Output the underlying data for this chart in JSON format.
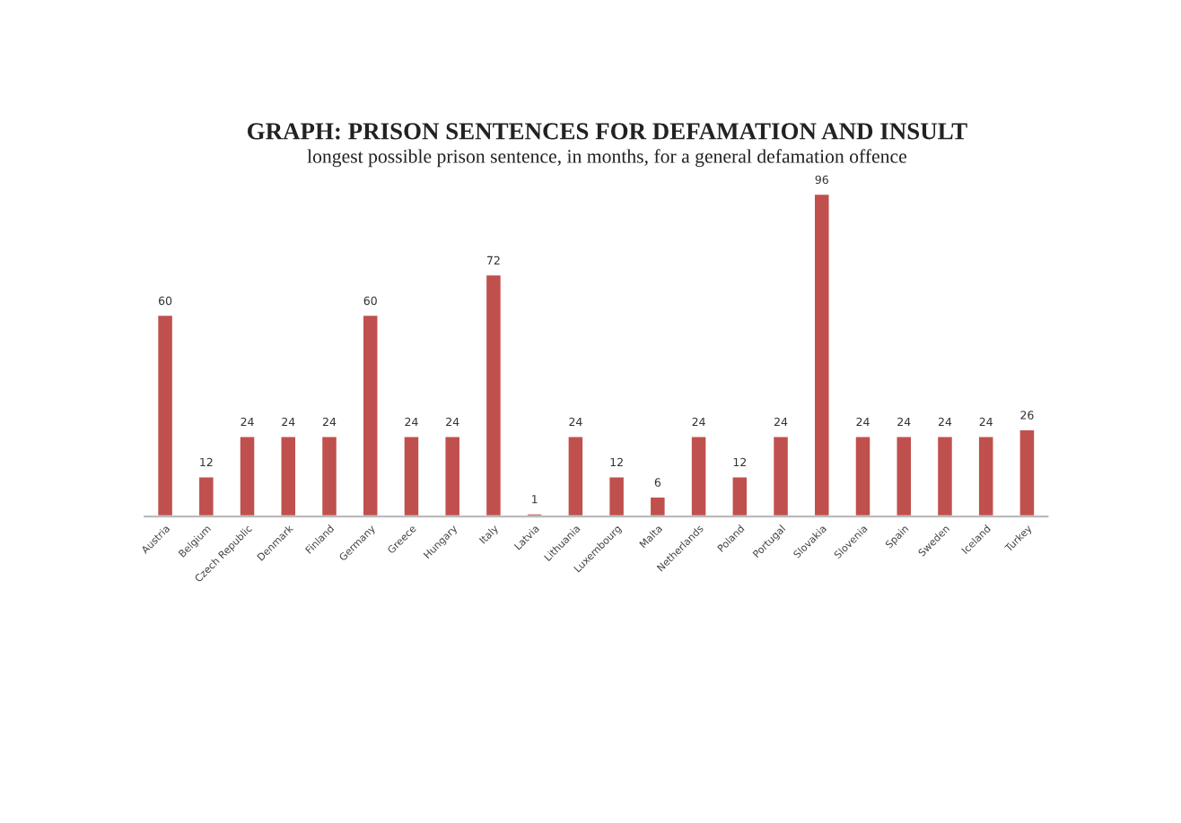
{
  "chart_data": {
    "type": "bar",
    "title": "GRAPH: PRISON SENTENCES FOR DEFAMATION AND INSULT",
    "subtitle": "longest possible prison sentence, in months, for a general defamation offence",
    "categories": [
      "Austria",
      "Belgium",
      "Czech Republic",
      "Denmark",
      "Finland",
      "Germany",
      "Greece",
      "Hungary",
      "Italy",
      "Latvia",
      "Lithuania",
      "Luxembourg",
      "Malta",
      "Netherlands",
      "Poland",
      "Portugal",
      "Slovakia",
      "Slovenia",
      "Spain",
      "Sweden",
      "Iceland",
      "Turkey"
    ],
    "values": [
      60,
      12,
      24,
      24,
      24,
      60,
      24,
      24,
      72,
      1,
      24,
      12,
      6,
      24,
      12,
      24,
      96,
      24,
      24,
      24,
      24,
      26
    ],
    "color": "#c0504d",
    "data_labels": true
  }
}
